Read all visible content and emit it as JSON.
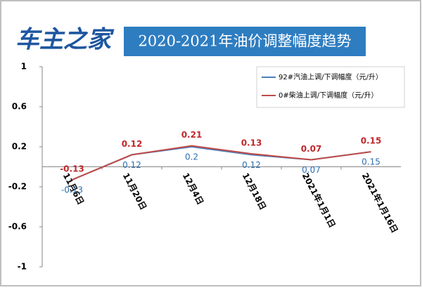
{
  "logo": "车主之家",
  "chart_data": {
    "type": "line",
    "title": "2020-2021年油价调整幅度趋势",
    "categories": [
      "11月6日",
      "11月20日",
      "12月4日",
      "12月18日",
      "2021年1月1日",
      "2021年1月16日"
    ],
    "series": [
      {
        "name": "92#汽油上调/下调幅度（元/升）",
        "color": "#4a7ebb",
        "label_color": "#2e6fb0",
        "label_side": "below",
        "values": [
          -0.13,
          0.12,
          0.2,
          0.12,
          0.07,
          0.15
        ]
      },
      {
        "name": "0#柴油上调/下调幅度（元/升）",
        "color": "#be4b48",
        "label_color": "#c0282b",
        "label_side": "above",
        "values": [
          -0.13,
          0.12,
          0.21,
          0.13,
          0.07,
          0.15
        ]
      }
    ],
    "ylim": [
      -1,
      1
    ],
    "yticks": [
      -1,
      -0.6,
      -0.2,
      0.2,
      0.6,
      1
    ],
    "grid": false,
    "legend": "top-right"
  }
}
